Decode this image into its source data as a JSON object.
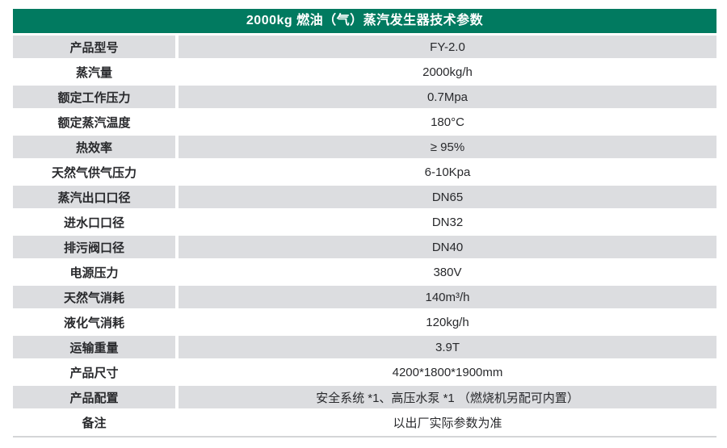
{
  "table": {
    "title": "2000kg 燃油（气）蒸汽发生器技术参数",
    "header_bg": "#017a60",
    "header_text_color": "#ffffff",
    "alt_row_bg": "#dcdde0",
    "text_color": "#28292c",
    "rows": [
      {
        "label": "产品型号",
        "value": "FY-2.0"
      },
      {
        "label": "蒸汽量",
        "value": "2000kg/h"
      },
      {
        "label": "额定工作压力",
        "value": "0.7Mpa"
      },
      {
        "label": "额定蒸汽温度",
        "value": "180°C"
      },
      {
        "label": "热效率",
        "value": "≥ 95%"
      },
      {
        "label": "天然气供气压力",
        "value": "6-10Kpa"
      },
      {
        "label": "蒸汽出口口径",
        "value": "DN65"
      },
      {
        "label": "进水口口径",
        "value": "DN32"
      },
      {
        "label": "排污阀口径",
        "value": "DN40"
      },
      {
        "label": "电源压力",
        "value": "380V"
      },
      {
        "label": "天然气消耗",
        "value": "140m³/h"
      },
      {
        "label": "液化气消耗",
        "value": "120kg/h"
      },
      {
        "label": "运输重量",
        "value": "3.9T"
      },
      {
        "label": "产品尺寸",
        "value": "4200*1800*1900mm"
      },
      {
        "label": "产品配置",
        "value": "安全系统 *1、高压水泵 *1 （燃烧机另配可内置）"
      },
      {
        "label": "备注",
        "value": "以出厂实际参数为准"
      }
    ]
  }
}
